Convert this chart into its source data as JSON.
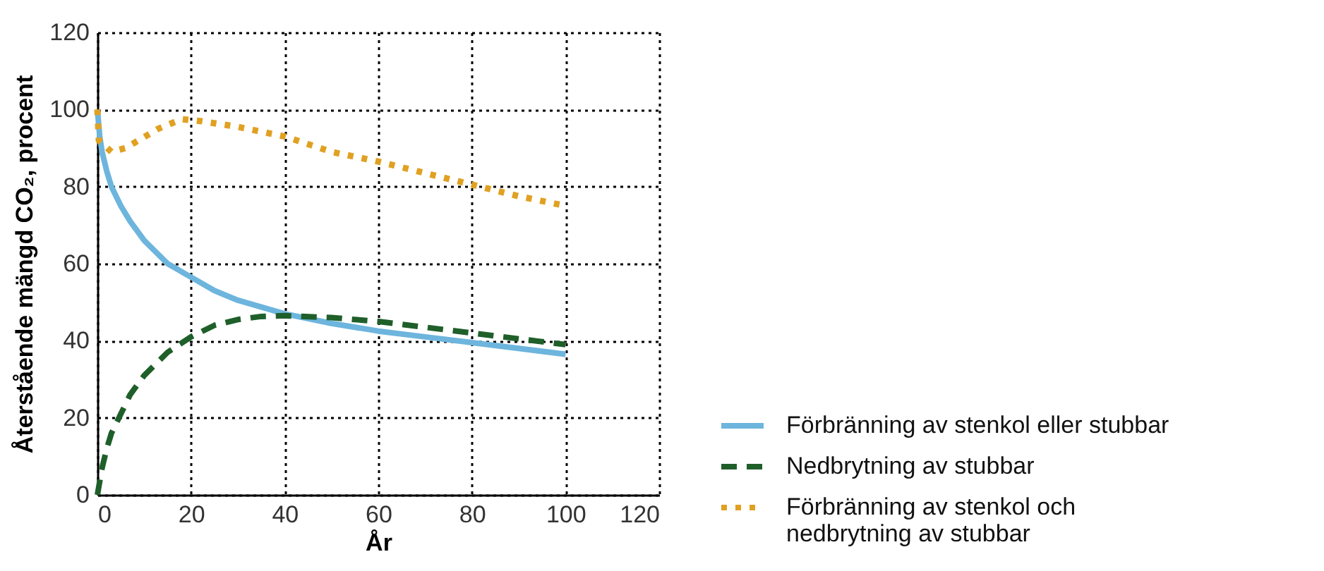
{
  "chart_data": {
    "type": "line",
    "xlabel": "År",
    "ylabel": "Återstående mängd CO₂, procent",
    "xlim": [
      0,
      120
    ],
    "xticks": [
      0,
      20,
      40,
      60,
      80,
      100,
      120
    ],
    "ylim": [
      0,
      120
    ],
    "yticks": [
      0,
      20,
      40,
      60,
      80,
      100,
      120
    ],
    "grid": true,
    "legend": "right",
    "series": [
      {
        "name": "Förbränning av stenkol eller stubbar",
        "color": "#6db5dd",
        "line_style": "solid",
        "x": [
          0,
          0.5,
          1,
          2,
          3,
          5,
          7,
          10,
          15,
          20,
          25,
          30,
          40,
          50,
          60,
          70,
          80,
          90,
          100
        ],
        "values": [
          100,
          93,
          89,
          84,
          80,
          75,
          71,
          66,
          60,
          56.5,
          53,
          50.5,
          47,
          44.5,
          42.5,
          41,
          39.5,
          38,
          36.5
        ]
      },
      {
        "name": "Nedbrytning av stubbar",
        "color": "#1f5f2a",
        "line_style": "dashed",
        "x": [
          0,
          1,
          2,
          3,
          5,
          7,
          10,
          15,
          20,
          25,
          30,
          35,
          40,
          50,
          60,
          70,
          80,
          90,
          100
        ],
        "values": [
          0,
          7,
          12,
          16,
          21,
          26,
          31,
          37,
          41,
          44,
          45.5,
          46.3,
          46.5,
          46,
          45,
          43.5,
          42,
          40.5,
          39
        ]
      },
      {
        "name": "Förbränning av stenkol och nedbrytning av stubbar",
        "color": "#e0a122",
        "line_style": "dotted",
        "x": [
          0,
          0.3,
          3,
          6,
          13,
          18,
          22,
          30,
          40,
          50,
          60,
          70,
          80,
          90,
          100
        ],
        "values": [
          100,
          92,
          89,
          90,
          95,
          97.5,
          97,
          95.5,
          93,
          89,
          86.5,
          83.5,
          80.5,
          77.5,
          75
        ]
      }
    ]
  }
}
